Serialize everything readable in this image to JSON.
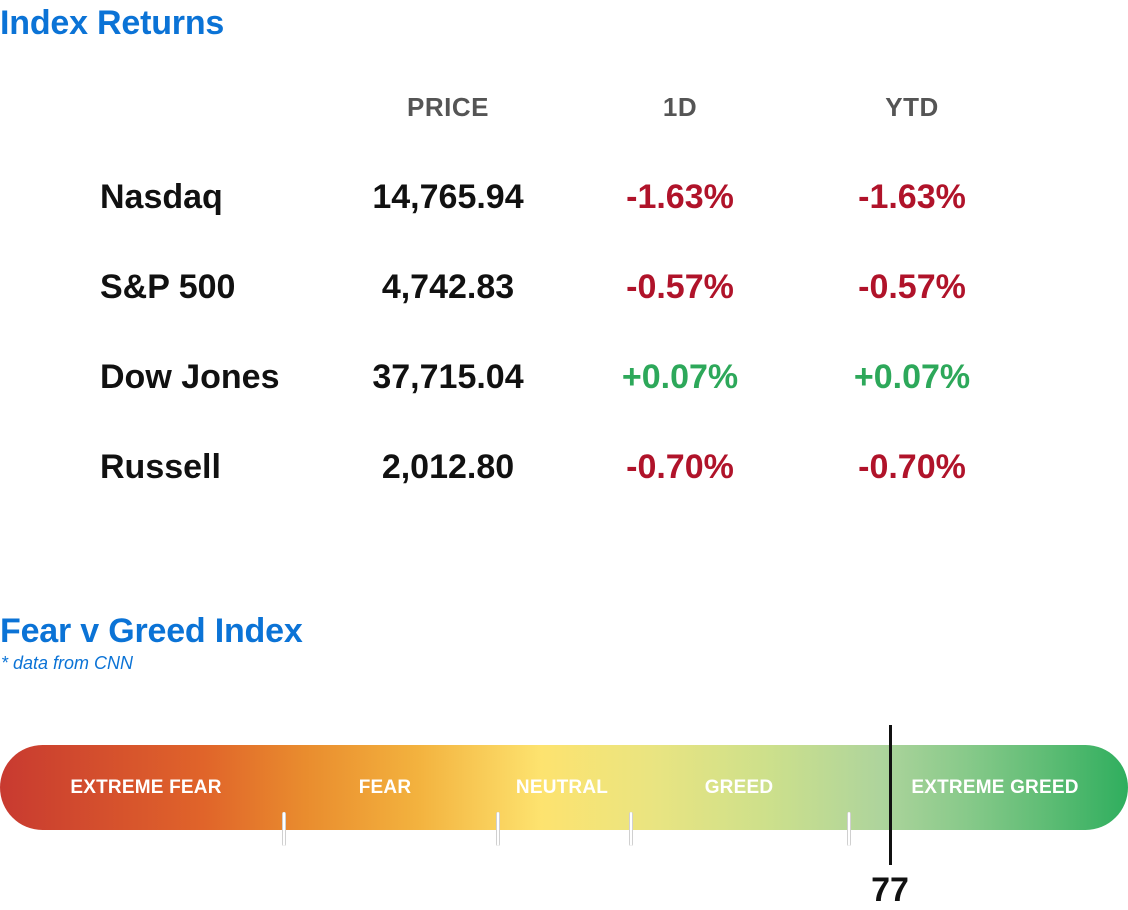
{
  "returns": {
    "title": "Index Returns",
    "headers": {
      "price": "PRICE",
      "d1": "1D",
      "ytd": "YTD"
    },
    "rows": [
      {
        "name": "Nasdaq",
        "price": "14,765.94",
        "d1": "-1.63%",
        "ytd": "-1.63%"
      },
      {
        "name": "S&P 500",
        "price": "4,742.83",
        "d1": "-0.57%",
        "ytd": "-0.57%"
      },
      {
        "name": "Dow Jones",
        "price": "37,715.04",
        "d1": "+0.07%",
        "ytd": "+0.07%"
      },
      {
        "name": "Russell",
        "price": "2,012.80",
        "d1": "-0.70%",
        "ytd": "-0.70%"
      }
    ],
    "colors": {
      "negative": "#b0132a",
      "positive": "#2da85a",
      "title": "#0b73d6"
    }
  },
  "fear_greed": {
    "title": "Fear v Greed Index",
    "note": "* data from CNN",
    "zones": [
      "EXTREME FEAR",
      "FEAR",
      "NEUTRAL",
      "GREED",
      "EXTREME GREED"
    ],
    "value": "77",
    "value_num": 77,
    "colors": {
      "extreme_fear": "#c83a30",
      "neutral": "#fde36f",
      "extreme_greed": "#2fae5e"
    }
  }
}
